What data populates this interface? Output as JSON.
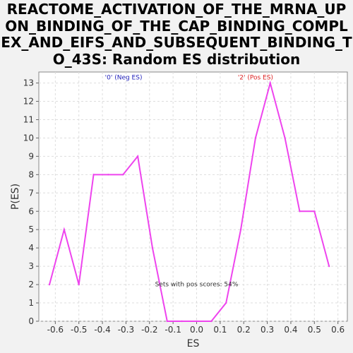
{
  "chart_data": {
    "type": "line",
    "title": "REACTOME_ACTIVATION_OF_THE_MRNA_UPON_BINDING_OF_THE_CAP_BINDING_COMPLEX_AND_EIFS_AND_SUBSEQUENT_BINDING_TO_43S: Random ES distribution",
    "title_lines": [
      "REACTOME_ACTIVATION_OF_THE_MRNA_UP",
      "ON_BINDING_OF_THE_CAP_BINDING_COMPL",
      "EX_AND_EIFS_AND_SUBSEQUENT_BINDING_T",
      "O_43S: Random ES distribution"
    ],
    "xlabel": "ES",
    "ylabel": "P(ES)",
    "xlim": [
      -0.67,
      0.64
    ],
    "ylim": [
      0,
      13.6
    ],
    "x_ticks": [
      "-0.6",
      "-0.5",
      "-0.4",
      "-0.3",
      "-0.2",
      "-0.1",
      "0.0",
      "0.1",
      "0.2",
      "0.3",
      "0.4",
      "0.5",
      "0.6"
    ],
    "x_tick_values": [
      -0.6,
      -0.5,
      -0.4,
      -0.3,
      -0.2,
      -0.1,
      0.0,
      0.1,
      0.2,
      0.3,
      0.4,
      0.5,
      0.6
    ],
    "y_ticks": [
      0,
      1,
      2,
      3,
      4,
      5,
      6,
      7,
      8,
      9,
      10,
      11,
      12,
      13
    ],
    "grid": true,
    "series": [
      {
        "color": "#ee44ee",
        "x": [
          -0.625,
          -0.5625,
          -0.5,
          -0.4375,
          -0.375,
          -0.3125,
          -0.25,
          -0.1875,
          -0.125,
          -0.0625,
          0.0,
          0.0625,
          0.125,
          0.1875,
          0.25,
          0.3125,
          0.375,
          0.4375,
          0.5,
          0.5625
        ],
        "y": [
          2,
          5,
          2,
          8,
          8,
          8,
          9,
          4,
          0,
          0,
          0,
          0,
          1,
          5,
          10,
          13,
          10,
          6,
          6,
          3
        ]
      }
    ],
    "annotations": [
      {
        "text": "'0' (Neg ES)",
        "x": -0.31,
        "y": 13.2,
        "color": "#2222bb"
      },
      {
        "text": "'2' (Pos ES)",
        "x": 0.25,
        "y": 13.2,
        "color": "#dd2222"
      },
      {
        "text": "Sets with pos scores: 54%",
        "x": 0.0,
        "y": 1.9,
        "color": "#333333"
      }
    ]
  }
}
